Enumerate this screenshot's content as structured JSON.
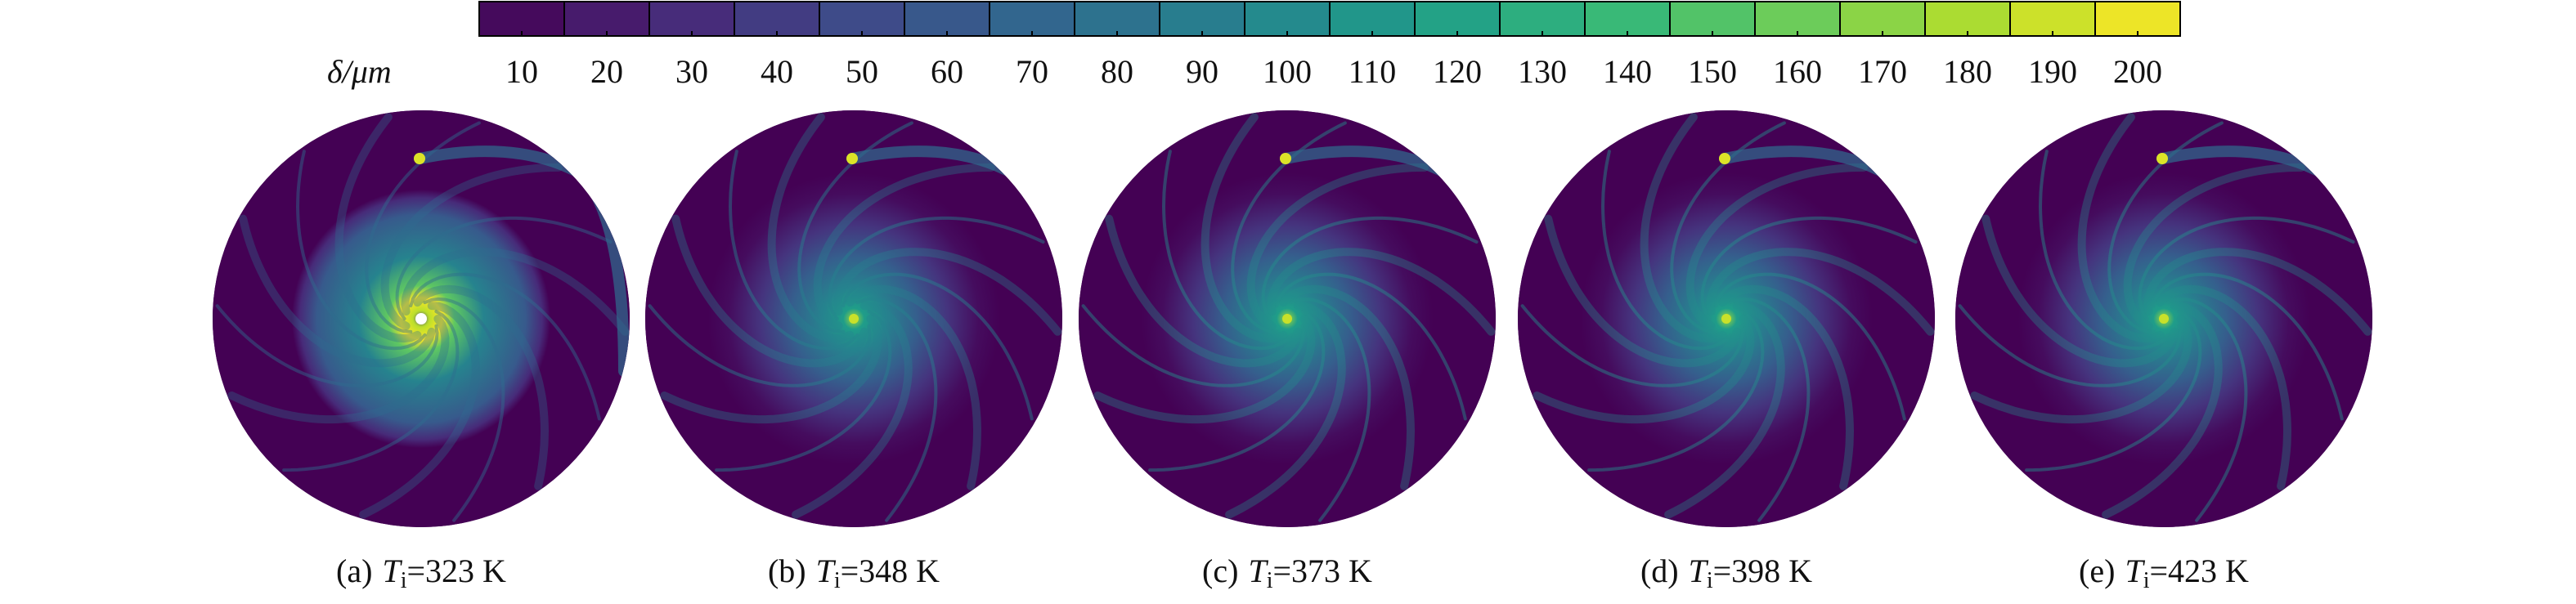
{
  "chart_data": {
    "type": "colormap-panels",
    "colorbar": {
      "label": "δ/μm",
      "clim": [
        5,
        205
      ],
      "ticks": [
        10,
        20,
        30,
        40,
        50,
        60,
        70,
        80,
        90,
        100,
        110,
        120,
        130,
        140,
        150,
        160,
        170,
        180,
        190,
        200
      ]
    },
    "panels": [
      {
        "tag": "(a)",
        "symbol": "T",
        "subscript": "i",
        "value": "=323 K"
      },
      {
        "tag": "(b)",
        "symbol": "T",
        "subscript": "i",
        "value": "=348 K"
      },
      {
        "tag": "(c)",
        "symbol": "T",
        "subscript": "i",
        "value": "=373 K"
      },
      {
        "tag": "(d)",
        "symbol": "T",
        "subscript": "i",
        "value": "=398 K"
      },
      {
        "tag": "(e)",
        "symbol": "T",
        "subscript": "i",
        "value": "=423 K"
      }
    ]
  }
}
